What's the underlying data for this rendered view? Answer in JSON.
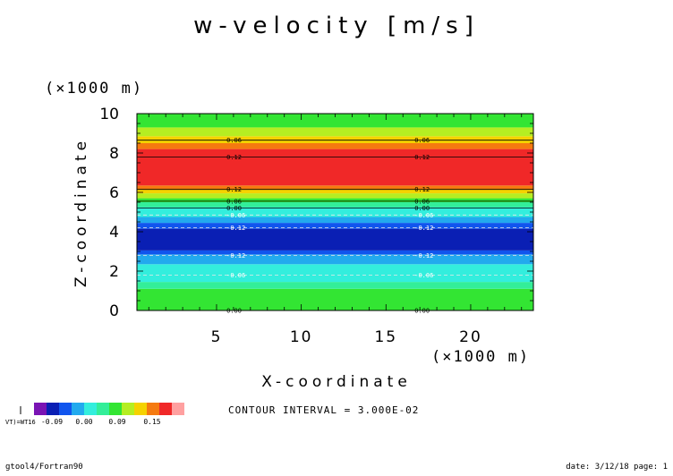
{
  "chart_data": {
    "type": "heatmap",
    "title": "w-velocity [m/s]",
    "xlabel": "X-coordinate",
    "ylabel": "Z-coordinate",
    "x_unit": "(×1000 m)",
    "y_unit": "(×1000 m)",
    "xlim": [
      0.3,
      23.7
    ],
    "ylim": [
      0,
      10
    ],
    "x_ticks": [
      "5",
      "10",
      "15",
      "20"
    ],
    "y_ticks": [
      "0",
      "2",
      "4",
      "6",
      "8",
      "10"
    ],
    "bands": [
      {
        "z0": 0.0,
        "z1": 1.1,
        "color": "#33e533"
      },
      {
        "z0": 1.1,
        "z1": 1.45,
        "color": "#33ee99"
      },
      {
        "z0": 1.45,
        "z1": 2.35,
        "color": "#33eedd"
      },
      {
        "z0": 2.35,
        "z1": 2.85,
        "color": "#22aaee"
      },
      {
        "z0": 2.85,
        "z1": 3.05,
        "color": "#1155ee"
      },
      {
        "z0": 3.05,
        "z1": 4.15,
        "color": "#0a1fb4"
      },
      {
        "z0": 4.15,
        "z1": 4.45,
        "color": "#1155ee"
      },
      {
        "z0": 4.45,
        "z1": 4.75,
        "color": "#22aaee"
      },
      {
        "z0": 4.75,
        "z1": 5.25,
        "color": "#33eedd"
      },
      {
        "z0": 5.25,
        "z1": 5.5,
        "color": "#33ee99"
      },
      {
        "z0": 5.5,
        "z1": 5.7,
        "color": "#33e533"
      },
      {
        "z0": 5.7,
        "z1": 5.95,
        "color": "#b5ee22"
      },
      {
        "z0": 5.95,
        "z1": 6.15,
        "color": "#f5d200"
      },
      {
        "z0": 6.15,
        "z1": 6.35,
        "color": "#f57a10"
      },
      {
        "z0": 6.35,
        "z1": 8.2,
        "color": "#f02828"
      },
      {
        "z0": 8.2,
        "z1": 8.5,
        "color": "#f57a10"
      },
      {
        "z0": 8.5,
        "z1": 8.85,
        "color": "#f5d200"
      },
      {
        "z0": 8.85,
        "z1": 9.3,
        "color": "#b5ee22"
      },
      {
        "z0": 9.3,
        "z1": 10.0,
        "color": "#33e533"
      }
    ],
    "contours": [
      {
        "z": 0.0,
        "label": "0.00",
        "dashed": false
      },
      {
        "z": 1.8,
        "label": "-0.06",
        "dashed": true
      },
      {
        "z": 2.8,
        "label": "-0.12",
        "dashed": true
      },
      {
        "z": 4.2,
        "label": "-0.12",
        "dashed": true
      },
      {
        "z": 4.85,
        "label": "-0.06",
        "dashed": true
      },
      {
        "z": 5.2,
        "label": "0.00",
        "dashed": false
      },
      {
        "z": 5.55,
        "label": "0.06",
        "dashed": false
      },
      {
        "z": 6.15,
        "label": "0.12",
        "dashed": false
      },
      {
        "z": 7.8,
        "label": "0.12",
        "dashed": false
      },
      {
        "z": 8.65,
        "label": "0.06",
        "dashed": false
      }
    ],
    "contour_label_x": [
      5.8,
      16.9
    ],
    "colorbar": {
      "colors": [
        "#7a14b4",
        "#0a1fb4",
        "#1155ee",
        "#22aaee",
        "#33eedd",
        "#33ee99",
        "#33e533",
        "#b5ee22",
        "#f5d200",
        "#f57a10",
        "#f02828",
        "#ffa0a0"
      ],
      "labels": [
        "-0.09",
        "0.00",
        "0.09",
        "0.15"
      ],
      "left_label": "VT)=WT16"
    },
    "contour_interval": "CONTOUR INTERVAL = 3.000E-02"
  },
  "footer": {
    "left": "gtool4/Fortran90",
    "right": "date: 3/12/18 page: 1"
  }
}
